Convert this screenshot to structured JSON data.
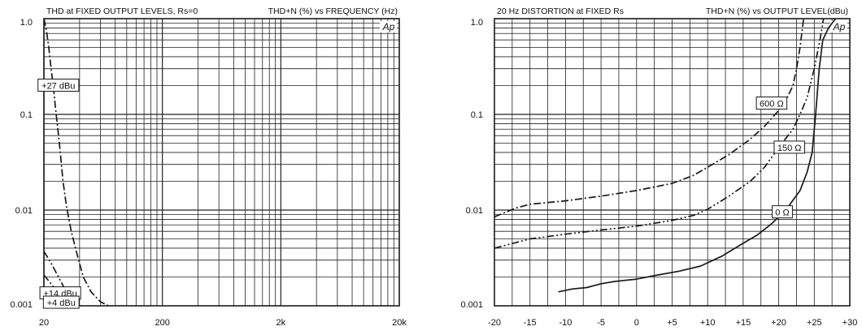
{
  "colors": {
    "ink": "#1a1a1a",
    "grid": "#222222",
    "background": "#ffffff"
  },
  "icon": "ap-logo",
  "chart_data": [
    {
      "type": "line",
      "title": "THD at FIXED OUTPUT LEVELS, Rs=0",
      "subtitle": "THD+N (%) vs FREQUENCY (Hz)",
      "logo": "Ap",
      "xscale": "log",
      "yscale": "log",
      "xlim": [
        20,
        20000
      ],
      "ylim": [
        0.001,
        1.0
      ],
      "xticks": [
        20,
        200,
        2000,
        20000
      ],
      "xtick_labels": [
        "20",
        "200",
        "2k",
        "20k"
      ],
      "yticks": [
        0.001,
        0.01,
        0.1,
        1.0
      ],
      "ytick_labels": [
        "0.001",
        "0.01",
        "0.1",
        "1.0"
      ],
      "grid": true,
      "series": [
        {
          "name": "+27 dBu",
          "style": "dash-dot",
          "points": [
            [
              20,
              1.0
            ],
            [
              21,
              0.75
            ],
            [
              22,
              0.5
            ],
            [
              23,
              0.3
            ],
            [
              24,
              0.2
            ],
            [
              25,
              0.12
            ],
            [
              27,
              0.05
            ],
            [
              29,
              0.02
            ],
            [
              31,
              0.011
            ],
            [
              34,
              0.006
            ],
            [
              38,
              0.0035
            ],
            [
              43,
              0.002
            ],
            [
              50,
              0.0014
            ],
            [
              60,
              0.0011
            ],
            [
              70,
              0.001
            ]
          ]
        },
        {
          "name": "+14 dBu",
          "style": "dash-dot-dot",
          "points": [
            [
              20,
              0.0037
            ],
            [
              23,
              0.0028
            ],
            [
              26,
              0.0021
            ],
            [
              30,
              0.0015
            ],
            [
              34,
              0.0012
            ],
            [
              38,
              0.001
            ]
          ]
        },
        {
          "name": "+4 dBu",
          "style": "dash-dot-dot",
          "points": [
            [
              20,
              0.0021
            ],
            [
              23,
              0.0017
            ],
            [
              26,
              0.0014
            ],
            [
              29,
              0.0012
            ],
            [
              32,
              0.001
            ]
          ]
        }
      ]
    },
    {
      "type": "line",
      "title": "20 Hz DISTORTION at FIXED Rs",
      "subtitle": "THD+N (%) vs OUTPUT LEVEL(dBu)",
      "logo": "Ap",
      "xscale": "linear",
      "yscale": "log",
      "xlim": [
        -20,
        30
      ],
      "ylim": [
        0.001,
        1.0
      ],
      "xticks": [
        -20,
        -15,
        -10,
        -5,
        0,
        5,
        10,
        15,
        20,
        25,
        30
      ],
      "xtick_labels": [
        "-20",
        "-15",
        "-10",
        "-5",
        "0",
        "+5",
        "+10",
        "+15",
        "+20",
        "+25",
        "+30"
      ],
      "yticks": [
        0.001,
        0.01,
        0.1,
        1.0
      ],
      "ytick_labels": [
        "0.001",
        "0.01",
        "0.1",
        "1.0"
      ],
      "grid": true,
      "series": [
        {
          "name": "600 Ω",
          "style": "dash-dot",
          "points": [
            [
              -20,
              0.0085
            ],
            [
              -17,
              0.0105
            ],
            [
              -15,
              0.0115
            ],
            [
              -10,
              0.0125
            ],
            [
              -5,
              0.014
            ],
            [
              0,
              0.016
            ],
            [
              5,
              0.019
            ],
            [
              8,
              0.023
            ],
            [
              10,
              0.028
            ],
            [
              13,
              0.038
            ],
            [
              16,
              0.055
            ],
            [
              18,
              0.075
            ],
            [
              20,
              0.11
            ],
            [
              21,
              0.14
            ],
            [
              22,
              0.2
            ],
            [
              22.5,
              0.3
            ],
            [
              23,
              0.5
            ],
            [
              23.5,
              1.0
            ]
          ]
        },
        {
          "name": "150 Ω",
          "style": "dash-dot-dot",
          "points": [
            [
              -20,
              0.004
            ],
            [
              -15,
              0.005
            ],
            [
              -10,
              0.0056
            ],
            [
              -5,
              0.0062
            ],
            [
              0,
              0.0068
            ],
            [
              5,
              0.0078
            ],
            [
              8,
              0.0088
            ],
            [
              10,
              0.0102
            ],
            [
              13,
              0.014
            ],
            [
              16,
              0.02
            ],
            [
              18,
              0.028
            ],
            [
              20,
              0.045
            ],
            [
              22,
              0.07
            ],
            [
              23,
              0.1
            ],
            [
              24,
              0.15
            ],
            [
              25,
              0.3
            ],
            [
              25.8,
              0.6
            ],
            [
              26.3,
              1.0
            ]
          ]
        },
        {
          "name": "0 Ω",
          "style": "solid",
          "points": [
            [
              -11,
              0.0014
            ],
            [
              -9,
              0.0015
            ],
            [
              -7,
              0.00155
            ],
            [
              -5,
              0.0017
            ],
            [
              -3,
              0.0018
            ],
            [
              0,
              0.0019
            ],
            [
              3,
              0.0021
            ],
            [
              6,
              0.0023
            ],
            [
              9,
              0.0026
            ],
            [
              12,
              0.0033
            ],
            [
              15,
              0.0045
            ],
            [
              17,
              0.0055
            ],
            [
              19,
              0.0072
            ],
            [
              21,
              0.01
            ],
            [
              23,
              0.016
            ],
            [
              24,
              0.025
            ],
            [
              24.7,
              0.04
            ],
            [
              25.2,
              0.1
            ],
            [
              25.7,
              0.3
            ],
            [
              26.2,
              0.6
            ],
            [
              27,
              0.8
            ],
            [
              28,
              1.0
            ]
          ]
        }
      ]
    }
  ]
}
